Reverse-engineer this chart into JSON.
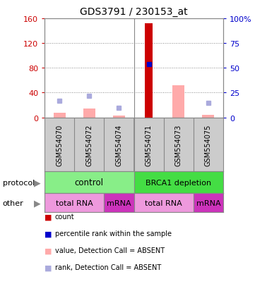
{
  "title": "GDS3791 / 230153_at",
  "samples": [
    "GSM554070",
    "GSM554072",
    "GSM554074",
    "GSM554071",
    "GSM554073",
    "GSM554075"
  ],
  "count_values": [
    0,
    0,
    0,
    152,
    0,
    0
  ],
  "count_color": "#cc0000",
  "absent_value_bars": [
    8,
    14,
    3,
    0,
    52,
    4
  ],
  "absent_value_color": "#ffaaaa",
  "absent_rank_vals": [
    17,
    22,
    10,
    0,
    0,
    15
  ],
  "absent_rank_color": "#aaaadd",
  "percentile_rank": [
    0,
    0,
    0,
    54,
    0,
    0
  ],
  "percentile_color": "#0000cc",
  "left_ylim": [
    0,
    160
  ],
  "right_ylim": [
    0,
    100
  ],
  "left_yticks": [
    0,
    40,
    80,
    120,
    160
  ],
  "right_yticks": [
    0,
    25,
    50,
    75,
    100
  ],
  "right_yticklabels": [
    "0",
    "25",
    "50",
    "75",
    "100%"
  ],
  "grid_color": "#888888",
  "plot_bg": "#ffffff",
  "sample_row_bg": "#cccccc",
  "protocol_control_bg": "#88ee88",
  "protocol_brca1_bg": "#44dd44",
  "other_total_rna_bg": "#ee99dd",
  "other_mrna_bg": "#cc33bb",
  "legend_items": [
    {
      "color": "#cc0000",
      "label": "count"
    },
    {
      "color": "#0000cc",
      "label": "percentile rank within the sample"
    },
    {
      "color": "#ffaaaa",
      "label": "value, Detection Call = ABSENT"
    },
    {
      "color": "#aaaadd",
      "label": "rank, Detection Call = ABSENT"
    }
  ],
  "protocol_label": "protocol",
  "other_label": "other",
  "left_axis_color": "#cc0000",
  "right_axis_color": "#0000cc",
  "bar_width": 0.4,
  "count_bar_width": 0.28
}
